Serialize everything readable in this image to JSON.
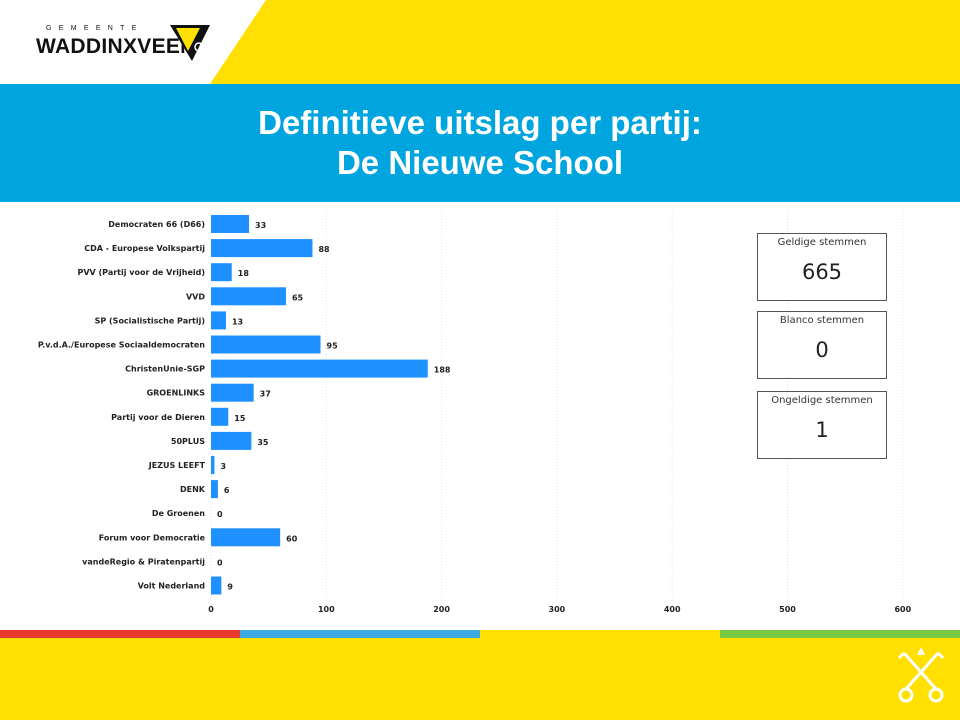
{
  "header": {
    "logo_small": "GEMEENTE",
    "logo_text": "WADDINXVEEN"
  },
  "title": {
    "line1": "Definitieve uitslag per partij:",
    "line2": "De Nieuwe School"
  },
  "colors": {
    "yellow": "#ffe000",
    "blue_band": "#00a5df",
    "bar": "#1e90ff",
    "stripe_red": "#e8392a",
    "stripe_blue": "#3ea8e0",
    "stripe_yellow": "#ffe000",
    "stripe_green": "#7ac943"
  },
  "chart_data": {
    "type": "bar",
    "orientation": "horizontal",
    "categories": [
      "Democraten 66 (D66)",
      "CDA - Europese Volkspartij",
      "PVV (Partij voor de Vrijheid)",
      "VVD",
      "SP (Socialistische Partij)",
      "P.v.d.A./Europese Sociaaldemocraten",
      "ChristenUnie-SGP",
      "GROENLINKS",
      "Partij voor de Dieren",
      "50PLUS",
      "JEZUS LEEFT",
      "DENK",
      "De Groenen",
      "Forum voor Democratie",
      "vandeRegio & Piratenpartij",
      "Volt Nederland"
    ],
    "values": [
      33,
      88,
      18,
      65,
      13,
      95,
      188,
      37,
      15,
      35,
      3,
      6,
      0,
      60,
      0,
      9
    ],
    "x_ticks": [
      0,
      100,
      200,
      300,
      400,
      500,
      600
    ],
    "xlim": [
      0,
      600
    ],
    "grid": true
  },
  "cards": [
    {
      "label": "Geldige stemmen",
      "value": "665"
    },
    {
      "label": "Blanco stemmen",
      "value": "0"
    },
    {
      "label": "Ongeldige stemmen",
      "value": "1"
    }
  ],
  "icons": {
    "logo": "waddinxveen-logo-icon",
    "keys": "crossed-keys-icon"
  }
}
